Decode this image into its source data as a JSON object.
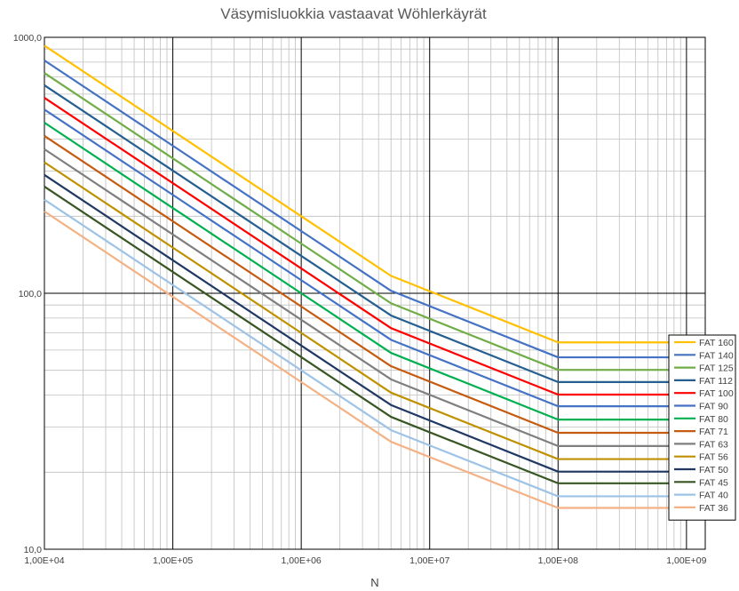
{
  "chart_data": {
    "type": "line",
    "title": "Väsymisluokkia vastaavat Wöhlerkäyrät",
    "xlabel": "N",
    "ylabel": "",
    "x_scale": "log",
    "y_scale": "log",
    "xlim": [
      10000,
      1400000000
    ],
    "ylim": [
      10,
      1000
    ],
    "x_tick_values": [
      10000,
      100000,
      1000000,
      10000000,
      100000000,
      1000000000
    ],
    "x_tick_labels": [
      "1,00E+04",
      "1,00E+05",
      "1,00E+06",
      "1,00E+07",
      "1,00E+08",
      "1,00E+09"
    ],
    "y_tick_values": [
      10,
      100,
      1000
    ],
    "y_tick_labels": [
      "10,0",
      "100,0",
      "1000,0"
    ],
    "grid": true,
    "legend_position": "right",
    "x": [
      10000,
      100000,
      1000000,
      5000000,
      100000000,
      1000000000
    ],
    "series": [
      {
        "name": "FAT 160",
        "color": "#FFC000",
        "values": [
          928.3,
          430.9,
          200.0,
          117.0,
          64.3,
          64.3
        ]
      },
      {
        "name": "FAT 140",
        "color": "#4472C4",
        "values": [
          812.3,
          377.0,
          175.0,
          102.3,
          56.2,
          56.2
        ]
      },
      {
        "name": "FAT 125",
        "color": "#70AD47",
        "values": [
          725.3,
          336.6,
          156.3,
          91.4,
          50.2,
          50.2
        ]
      },
      {
        "name": "FAT 112",
        "color": "#255E91",
        "values": [
          649.8,
          301.6,
          140.0,
          81.9,
          45.0,
          45.0
        ]
      },
      {
        "name": "FAT 100",
        "color": "#FF0000",
        "values": [
          580.2,
          269.3,
          125.0,
          73.1,
          40.2,
          40.2
        ]
      },
      {
        "name": "FAT 90",
        "color": "#4472C4",
        "values": [
          522.2,
          242.4,
          112.5,
          65.8,
          36.2,
          36.2
        ]
      },
      {
        "name": "FAT 80",
        "color": "#00B050",
        "values": [
          464.2,
          215.4,
          100.0,
          58.5,
          32.1,
          32.1
        ]
      },
      {
        "name": "FAT 71",
        "color": "#C55A11",
        "values": [
          411.9,
          191.2,
          88.8,
          51.9,
          28.5,
          28.5
        ]
      },
      {
        "name": "FAT 63",
        "color": "#7F7F7F",
        "values": [
          365.5,
          169.7,
          78.8,
          46.1,
          25.3,
          25.3
        ]
      },
      {
        "name": "FAT 56",
        "color": "#BF9000",
        "values": [
          324.9,
          150.8,
          70.0,
          40.9,
          22.5,
          22.5
        ]
      },
      {
        "name": "FAT 50",
        "color": "#203864",
        "values": [
          290.1,
          134.6,
          62.5,
          36.6,
          20.1,
          20.1
        ]
      },
      {
        "name": "FAT 45",
        "color": "#375623",
        "values": [
          261.1,
          121.2,
          56.3,
          32.9,
          18.1,
          18.1
        ]
      },
      {
        "name": "FAT 40",
        "color": "#9DC3E6",
        "values": [
          232.1,
          107.7,
          50.0,
          29.2,
          16.1,
          16.1
        ]
      },
      {
        "name": "FAT 36",
        "color": "#F4B183",
        "values": [
          208.9,
          96.9,
          45.0,
          26.3,
          14.5,
          14.5
        ]
      }
    ]
  }
}
